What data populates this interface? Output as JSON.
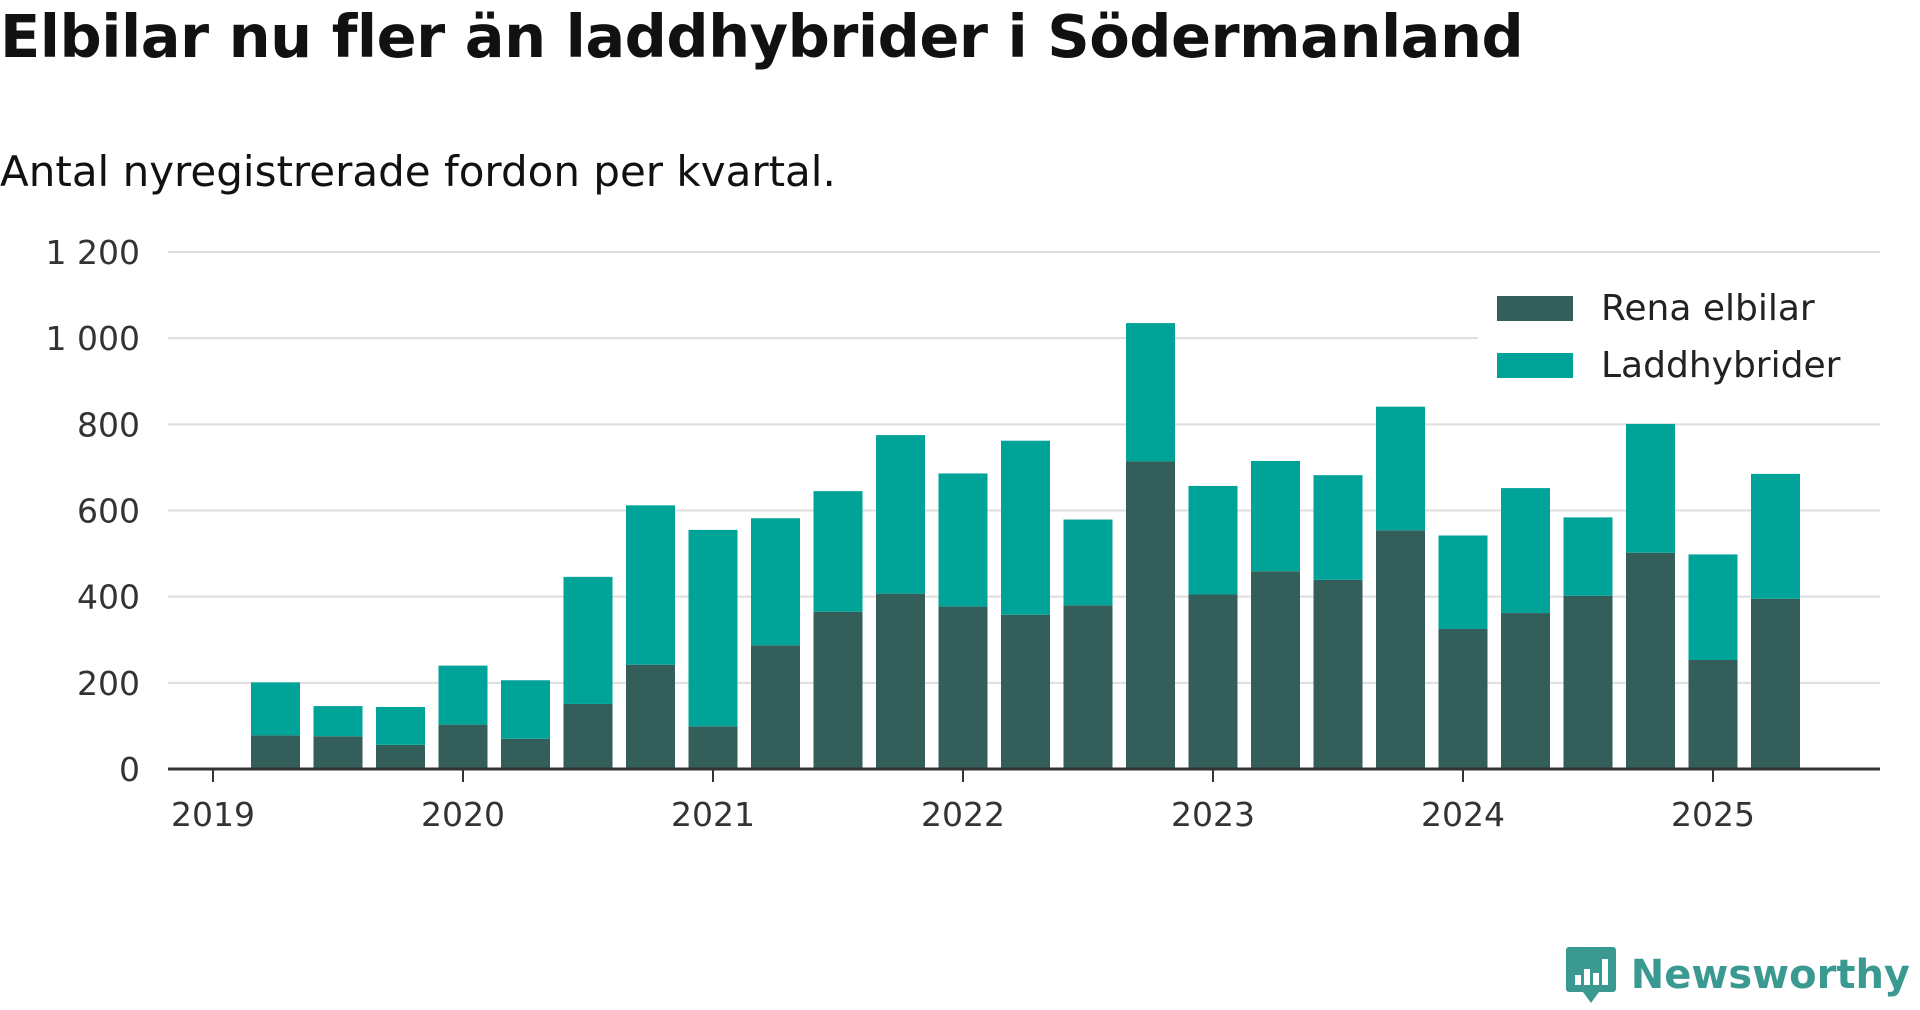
{
  "title": "Elbilar nu fler än laddhybrider i Södermanland",
  "subtitle": "Antal nyregistrerade fordon per kvartal.",
  "brand": {
    "name": "Newsworthy",
    "icon": "newsworthy-logo-icon"
  },
  "chart_data": {
    "type": "bar",
    "stacked": true,
    "title": "Elbilar nu fler än laddhybrider i Södermanland",
    "subtitle": "Antal nyregistrerade fordon per kvartal.",
    "xlabel": "",
    "ylabel": "",
    "ylim": [
      0,
      1200
    ],
    "y_ticks": [
      0,
      200,
      400,
      600,
      800,
      1000,
      1200
    ],
    "y_tick_labels": [
      "0",
      "200",
      "400",
      "600",
      "800",
      "1 000",
      "1 200"
    ],
    "x_tick_labels": [
      "2019",
      "2020",
      "2021",
      "2022",
      "2023",
      "2024",
      "2025"
    ],
    "grid": true,
    "legend_position": "top-right",
    "categories": [
      "2019-Q2",
      "2019-Q3",
      "2019-Q4",
      "2020-Q1",
      "2020-Q2",
      "2020-Q3",
      "2020-Q4",
      "2021-Q1",
      "2021-Q2",
      "2021-Q3",
      "2021-Q4",
      "2022-Q1",
      "2022-Q2",
      "2022-Q3",
      "2022-Q4",
      "2023-Q1",
      "2023-Q2",
      "2023-Q3",
      "2023-Q4",
      "2024-Q1",
      "2024-Q2",
      "2024-Q3",
      "2024-Q4",
      "2025-Q1",
      "2025-Q2"
    ],
    "series": [
      {
        "name": "Rena elbilar",
        "color": "#335e5a",
        "values": [
          78,
          76,
          56,
          103,
          70,
          151,
          242,
          99,
          287,
          365,
          407,
          377,
          358,
          380,
          714,
          405,
          459,
          439,
          554,
          325,
          362,
          402,
          502,
          253,
          395
        ]
      },
      {
        "name": "Laddhybrider",
        "color": "#00a398",
        "values": [
          123,
          70,
          88,
          137,
          136,
          295,
          370,
          456,
          295,
          280,
          368,
          309,
          404,
          199,
          321,
          252,
          256,
          243,
          287,
          217,
          290,
          182,
          299,
          245,
          290
        ]
      }
    ]
  }
}
